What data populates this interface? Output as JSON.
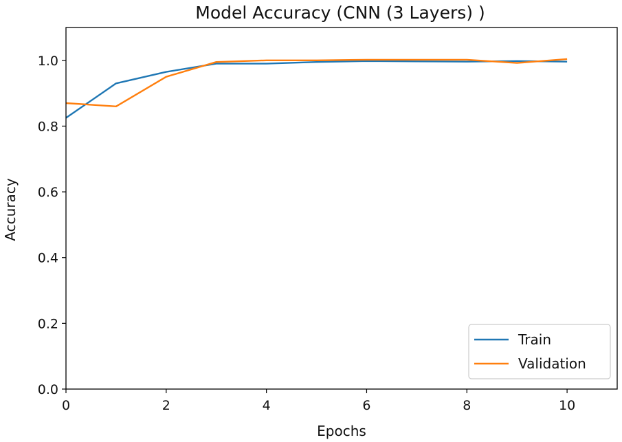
{
  "chart_data": {
    "type": "line",
    "title": "Model Accuracy (CNN (3 Layers) )",
    "xlabel": "Epochs",
    "ylabel": "Accuracy",
    "xlim": [
      0,
      11
    ],
    "ylim": [
      0,
      1.1
    ],
    "x_ticks": [
      0,
      2,
      4,
      6,
      8,
      10
    ],
    "y_ticks": [
      0.0,
      0.2,
      0.4,
      0.6,
      0.8,
      1.0
    ],
    "grid": false,
    "legend_position": "lower-right",
    "x": [
      0,
      1,
      2,
      3,
      4,
      5,
      6,
      7,
      8,
      9,
      10
    ],
    "series": [
      {
        "name": "Train",
        "color": "#1f77b4",
        "values": [
          0.825,
          0.93,
          0.965,
          0.99,
          0.99,
          0.995,
          0.998,
          0.997,
          0.996,
          0.998,
          0.996
        ]
      },
      {
        "name": "Validation",
        "color": "#ff7f0e",
        "values": [
          0.87,
          0.86,
          0.95,
          0.995,
          1.0,
          1.0,
          1.002,
          1.002,
          1.002,
          0.992,
          1.004
        ]
      }
    ]
  }
}
